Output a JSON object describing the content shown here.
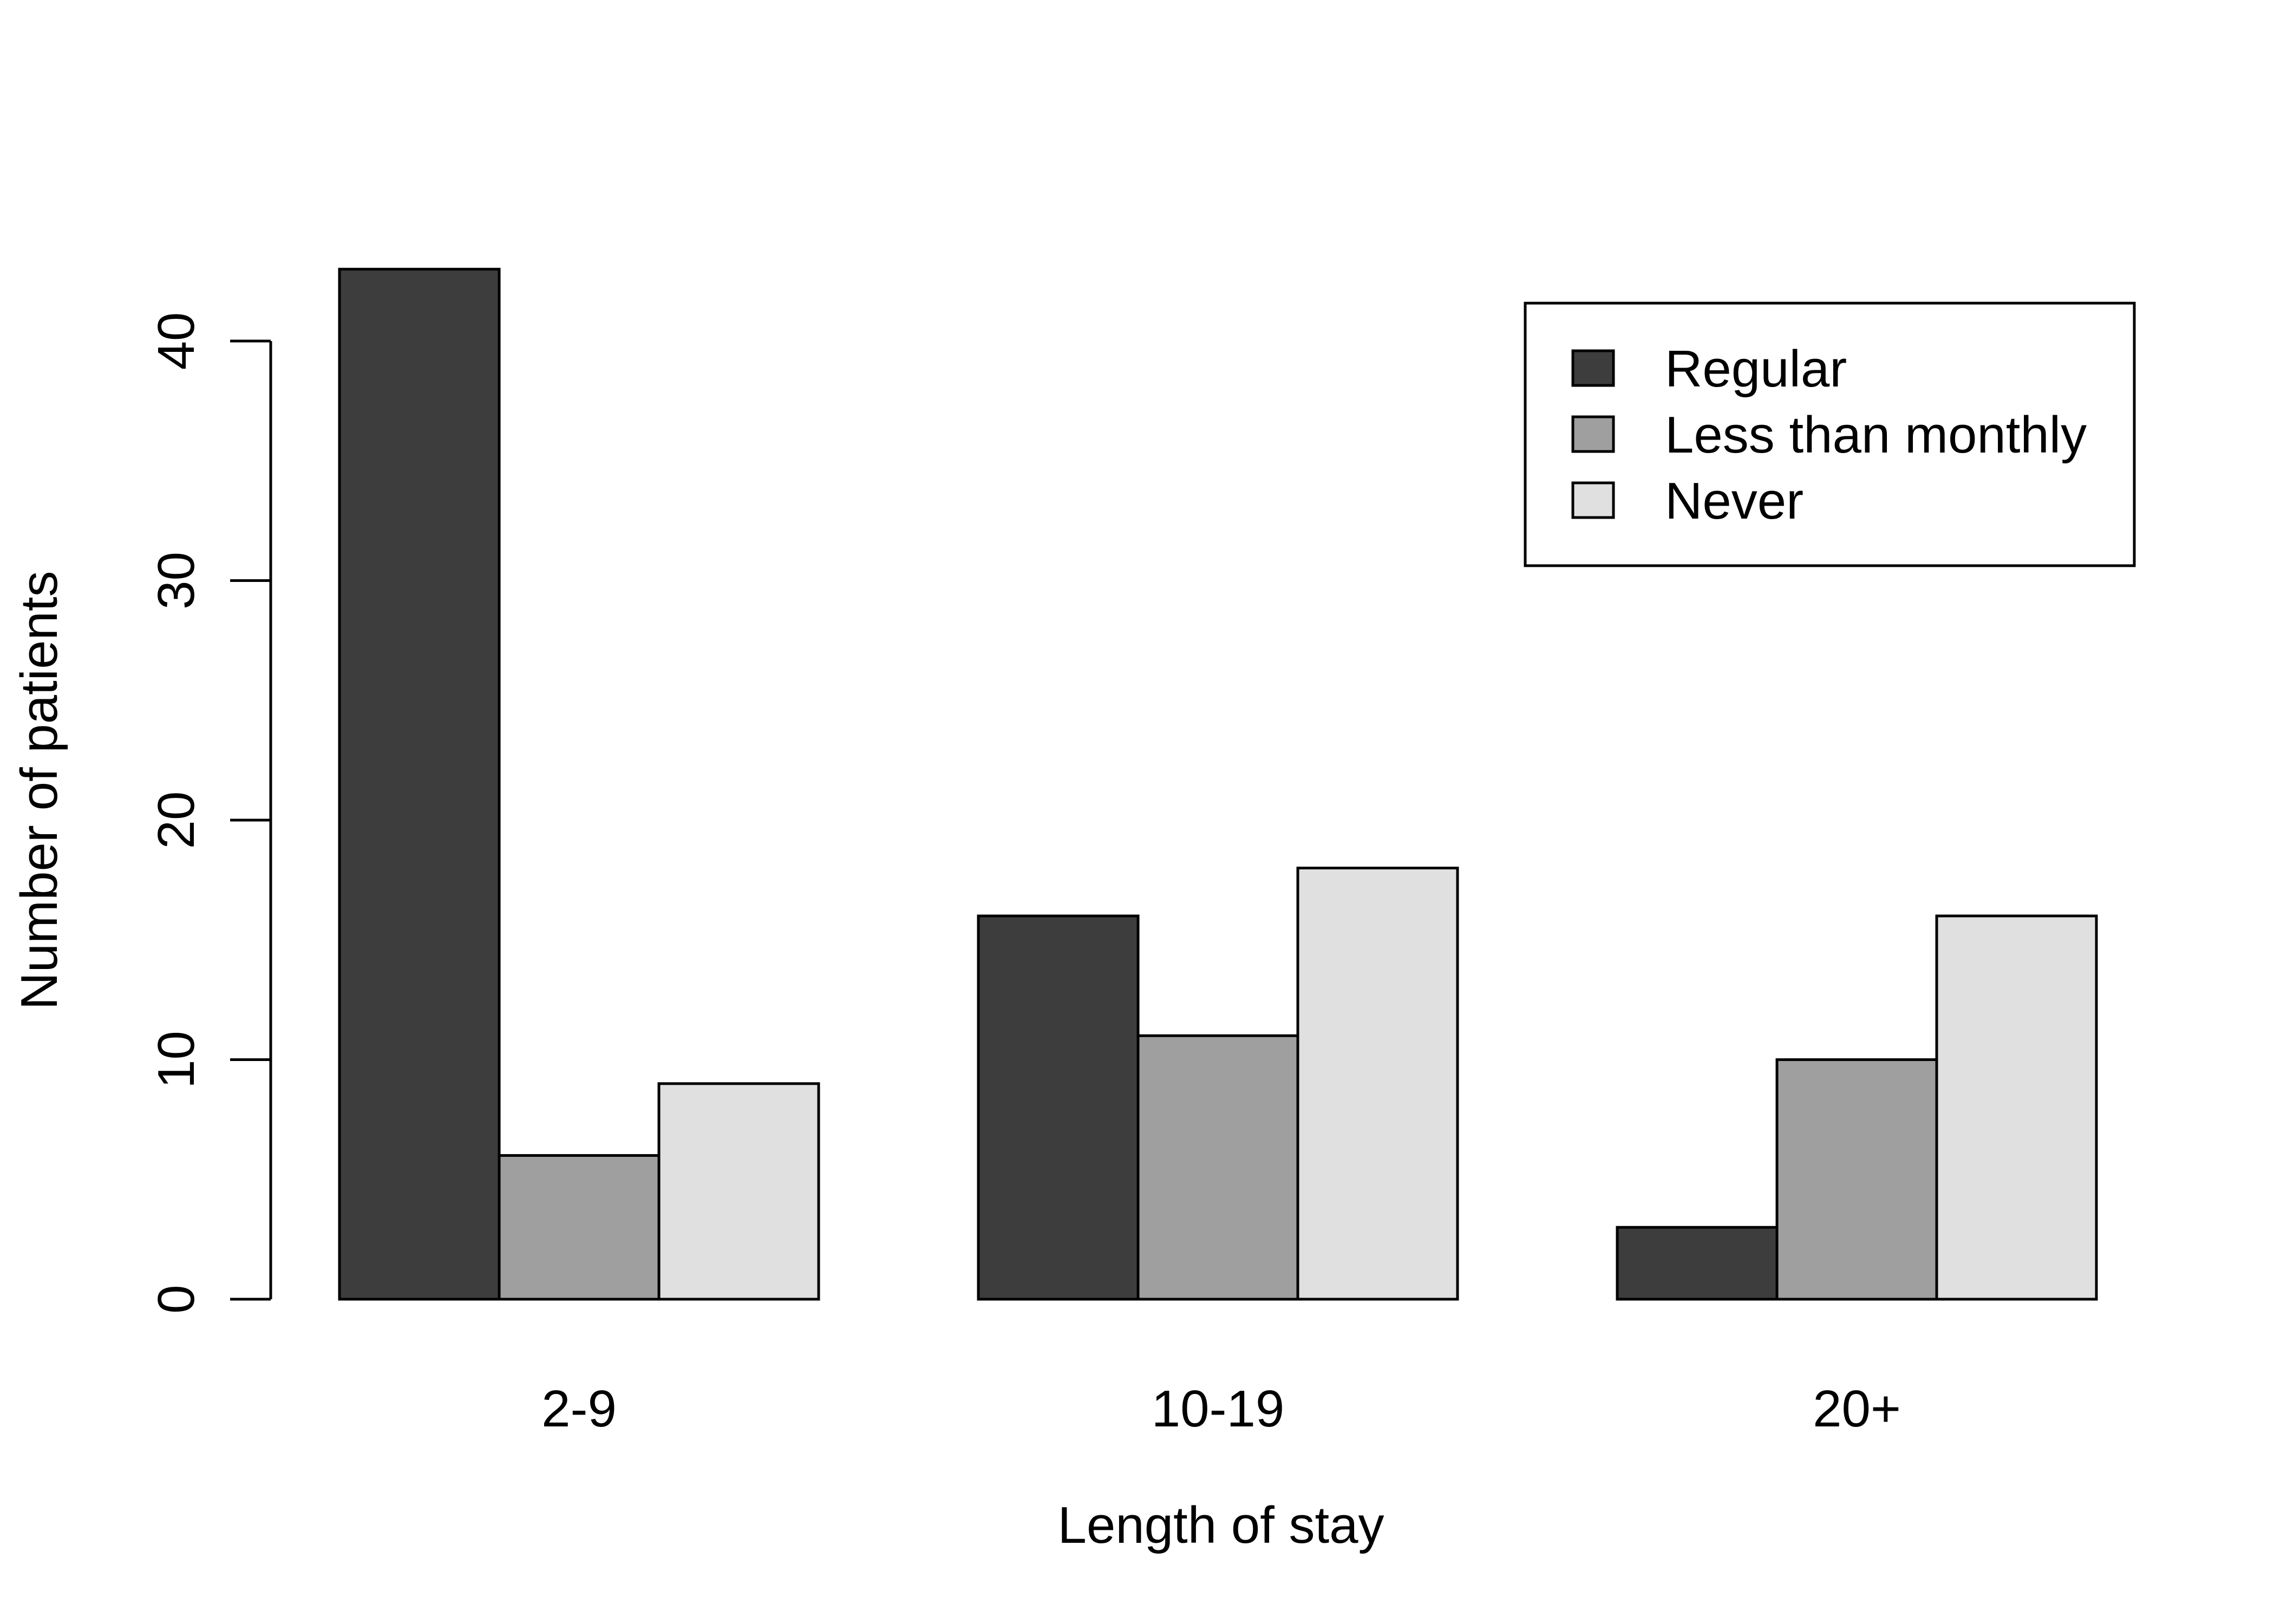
{
  "chart_data": {
    "type": "bar",
    "title": "",
    "xlabel": "Length of stay",
    "ylabel": "Number of patients",
    "categories": [
      "2-9",
      "10-19",
      "20+"
    ],
    "series": [
      {
        "name": "Regular",
        "values": [
          43,
          16,
          3
        ],
        "color": "#3d3d3d"
      },
      {
        "name": "Less than monthly",
        "values": [
          6,
          11,
          10
        ],
        "color": "#9f9f9f"
      },
      {
        "name": "Never",
        "values": [
          9,
          18,
          16
        ],
        "color": "#e0e0e0"
      }
    ],
    "ylim": [
      0,
      45
    ],
    "yticks": [
      "0",
      "10",
      "20",
      "30",
      "40"
    ],
    "grid": false,
    "legend_position": "top-right",
    "bar_outline_color": "#000000"
  }
}
